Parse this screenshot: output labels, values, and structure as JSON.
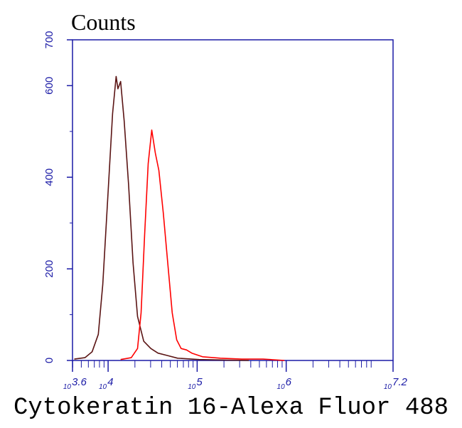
{
  "chart_data": {
    "type": "line",
    "title": "Counts",
    "x_label": "Cytokeratin 16-Alexa Fluor 488",
    "log_x": true,
    "xlim": [
      3981.07,
      15848931.92
    ],
    "xticks": [
      {
        "value": 3981.07,
        "label": "10",
        "exponent": "3.6"
      },
      {
        "value": 10000,
        "label": "10",
        "exponent": "4"
      },
      {
        "value": 100000,
        "label": "10",
        "exponent": "5"
      },
      {
        "value": 1000000,
        "label": "10",
        "exponent": "6"
      },
      {
        "value": 15848931.92,
        "label": "10",
        "exponent": "7.2"
      }
    ],
    "ylim": [
      0,
      700
    ],
    "yticks": [
      0,
      200,
      400,
      600,
      700
    ],
    "axis_color": "#1a1aa6",
    "series": [
      {
        "color": "#5a1414",
        "x": [
          4169,
          5495,
          6607,
          7762,
          8710,
          10000,
          11220,
          12303,
          12882,
          13804,
          15136,
          16982,
          19055,
          21380,
          25119,
          30200,
          36308,
          45709,
          60256,
          104713,
          380189
        ],
        "values": [
          3,
          6,
          19,
          57,
          166,
          368,
          539,
          620,
          593,
          609,
          523,
          384,
          213,
          96,
          42,
          26,
          16,
          11,
          5,
          2,
          0
        ]
      },
      {
        "color": "#ff0000",
        "x": [
          13804,
          18197,
          21380,
          23442,
          25704,
          28184,
          30903,
          33884,
          37154,
          41687,
          46774,
          52481,
          58884,
          66069,
          75858,
          87096,
          114815,
          181970,
          316228,
          549541,
          954993
        ],
        "values": [
          2,
          6,
          26,
          104,
          275,
          430,
          503,
          453,
          415,
          321,
          213,
          104,
          45,
          26,
          23,
          16,
          8,
          5,
          3,
          3,
          0
        ]
      }
    ]
  }
}
